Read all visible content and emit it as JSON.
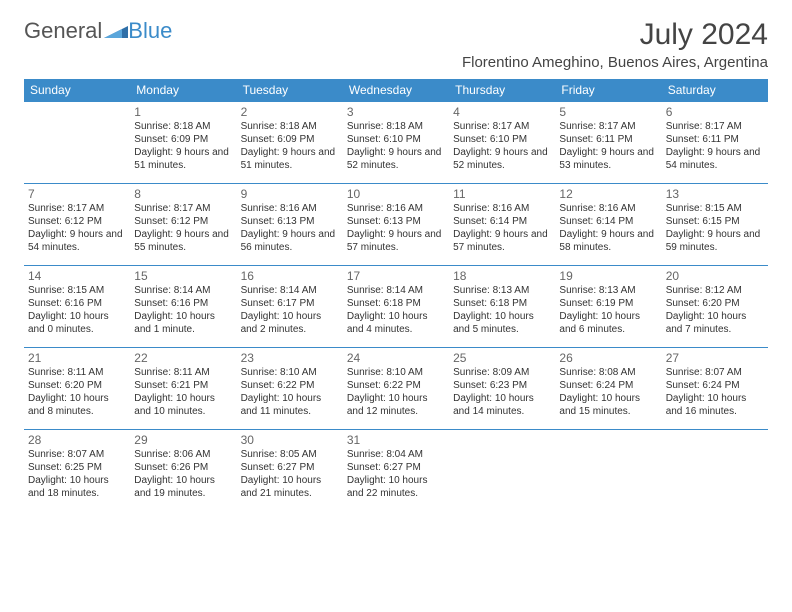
{
  "logo": {
    "text_a": "General",
    "text_b": "Blue"
  },
  "title": "July 2024",
  "subtitle": "Florentino Ameghino, Buenos Aires, Argentina",
  "colors": {
    "header_bg": "#3b8bc9",
    "header_text": "#ffffff",
    "cell_border": "#3b8bc9",
    "daynum": "#666666",
    "body_text": "#333333",
    "page_bg": "#ffffff"
  },
  "typography": {
    "title_fontsize": 30,
    "subtitle_fontsize": 15,
    "dayheader_fontsize": 12,
    "daynum_fontsize": 12,
    "cell_fontsize": 10
  },
  "day_headers": [
    "Sunday",
    "Monday",
    "Tuesday",
    "Wednesday",
    "Thursday",
    "Friday",
    "Saturday"
  ],
  "weeks": [
    [
      null,
      {
        "n": "1",
        "sunrise": "8:18 AM",
        "sunset": "6:09 PM",
        "daylight": "9 hours and 51 minutes."
      },
      {
        "n": "2",
        "sunrise": "8:18 AM",
        "sunset": "6:09 PM",
        "daylight": "9 hours and 51 minutes."
      },
      {
        "n": "3",
        "sunrise": "8:18 AM",
        "sunset": "6:10 PM",
        "daylight": "9 hours and 52 minutes."
      },
      {
        "n": "4",
        "sunrise": "8:17 AM",
        "sunset": "6:10 PM",
        "daylight": "9 hours and 52 minutes."
      },
      {
        "n": "5",
        "sunrise": "8:17 AM",
        "sunset": "6:11 PM",
        "daylight": "9 hours and 53 minutes."
      },
      {
        "n": "6",
        "sunrise": "8:17 AM",
        "sunset": "6:11 PM",
        "daylight": "9 hours and 54 minutes."
      }
    ],
    [
      {
        "n": "7",
        "sunrise": "8:17 AM",
        "sunset": "6:12 PM",
        "daylight": "9 hours and 54 minutes."
      },
      {
        "n": "8",
        "sunrise": "8:17 AM",
        "sunset": "6:12 PM",
        "daylight": "9 hours and 55 minutes."
      },
      {
        "n": "9",
        "sunrise": "8:16 AM",
        "sunset": "6:13 PM",
        "daylight": "9 hours and 56 minutes."
      },
      {
        "n": "10",
        "sunrise": "8:16 AM",
        "sunset": "6:13 PM",
        "daylight": "9 hours and 57 minutes."
      },
      {
        "n": "11",
        "sunrise": "8:16 AM",
        "sunset": "6:14 PM",
        "daylight": "9 hours and 57 minutes."
      },
      {
        "n": "12",
        "sunrise": "8:16 AM",
        "sunset": "6:14 PM",
        "daylight": "9 hours and 58 minutes."
      },
      {
        "n": "13",
        "sunrise": "8:15 AM",
        "sunset": "6:15 PM",
        "daylight": "9 hours and 59 minutes."
      }
    ],
    [
      {
        "n": "14",
        "sunrise": "8:15 AM",
        "sunset": "6:16 PM",
        "daylight": "10 hours and 0 minutes."
      },
      {
        "n": "15",
        "sunrise": "8:14 AM",
        "sunset": "6:16 PM",
        "daylight": "10 hours and 1 minute."
      },
      {
        "n": "16",
        "sunrise": "8:14 AM",
        "sunset": "6:17 PM",
        "daylight": "10 hours and 2 minutes."
      },
      {
        "n": "17",
        "sunrise": "8:14 AM",
        "sunset": "6:18 PM",
        "daylight": "10 hours and 4 minutes."
      },
      {
        "n": "18",
        "sunrise": "8:13 AM",
        "sunset": "6:18 PM",
        "daylight": "10 hours and 5 minutes."
      },
      {
        "n": "19",
        "sunrise": "8:13 AM",
        "sunset": "6:19 PM",
        "daylight": "10 hours and 6 minutes."
      },
      {
        "n": "20",
        "sunrise": "8:12 AM",
        "sunset": "6:20 PM",
        "daylight": "10 hours and 7 minutes."
      }
    ],
    [
      {
        "n": "21",
        "sunrise": "8:11 AM",
        "sunset": "6:20 PM",
        "daylight": "10 hours and 8 minutes."
      },
      {
        "n": "22",
        "sunrise": "8:11 AM",
        "sunset": "6:21 PM",
        "daylight": "10 hours and 10 minutes."
      },
      {
        "n": "23",
        "sunrise": "8:10 AM",
        "sunset": "6:22 PM",
        "daylight": "10 hours and 11 minutes."
      },
      {
        "n": "24",
        "sunrise": "8:10 AM",
        "sunset": "6:22 PM",
        "daylight": "10 hours and 12 minutes."
      },
      {
        "n": "25",
        "sunrise": "8:09 AM",
        "sunset": "6:23 PM",
        "daylight": "10 hours and 14 minutes."
      },
      {
        "n": "26",
        "sunrise": "8:08 AM",
        "sunset": "6:24 PM",
        "daylight": "10 hours and 15 minutes."
      },
      {
        "n": "27",
        "sunrise": "8:07 AM",
        "sunset": "6:24 PM",
        "daylight": "10 hours and 16 minutes."
      }
    ],
    [
      {
        "n": "28",
        "sunrise": "8:07 AM",
        "sunset": "6:25 PM",
        "daylight": "10 hours and 18 minutes."
      },
      {
        "n": "29",
        "sunrise": "8:06 AM",
        "sunset": "6:26 PM",
        "daylight": "10 hours and 19 minutes."
      },
      {
        "n": "30",
        "sunrise": "8:05 AM",
        "sunset": "6:27 PM",
        "daylight": "10 hours and 21 minutes."
      },
      {
        "n": "31",
        "sunrise": "8:04 AM",
        "sunset": "6:27 PM",
        "daylight": "10 hours and 22 minutes."
      },
      null,
      null,
      null
    ]
  ]
}
